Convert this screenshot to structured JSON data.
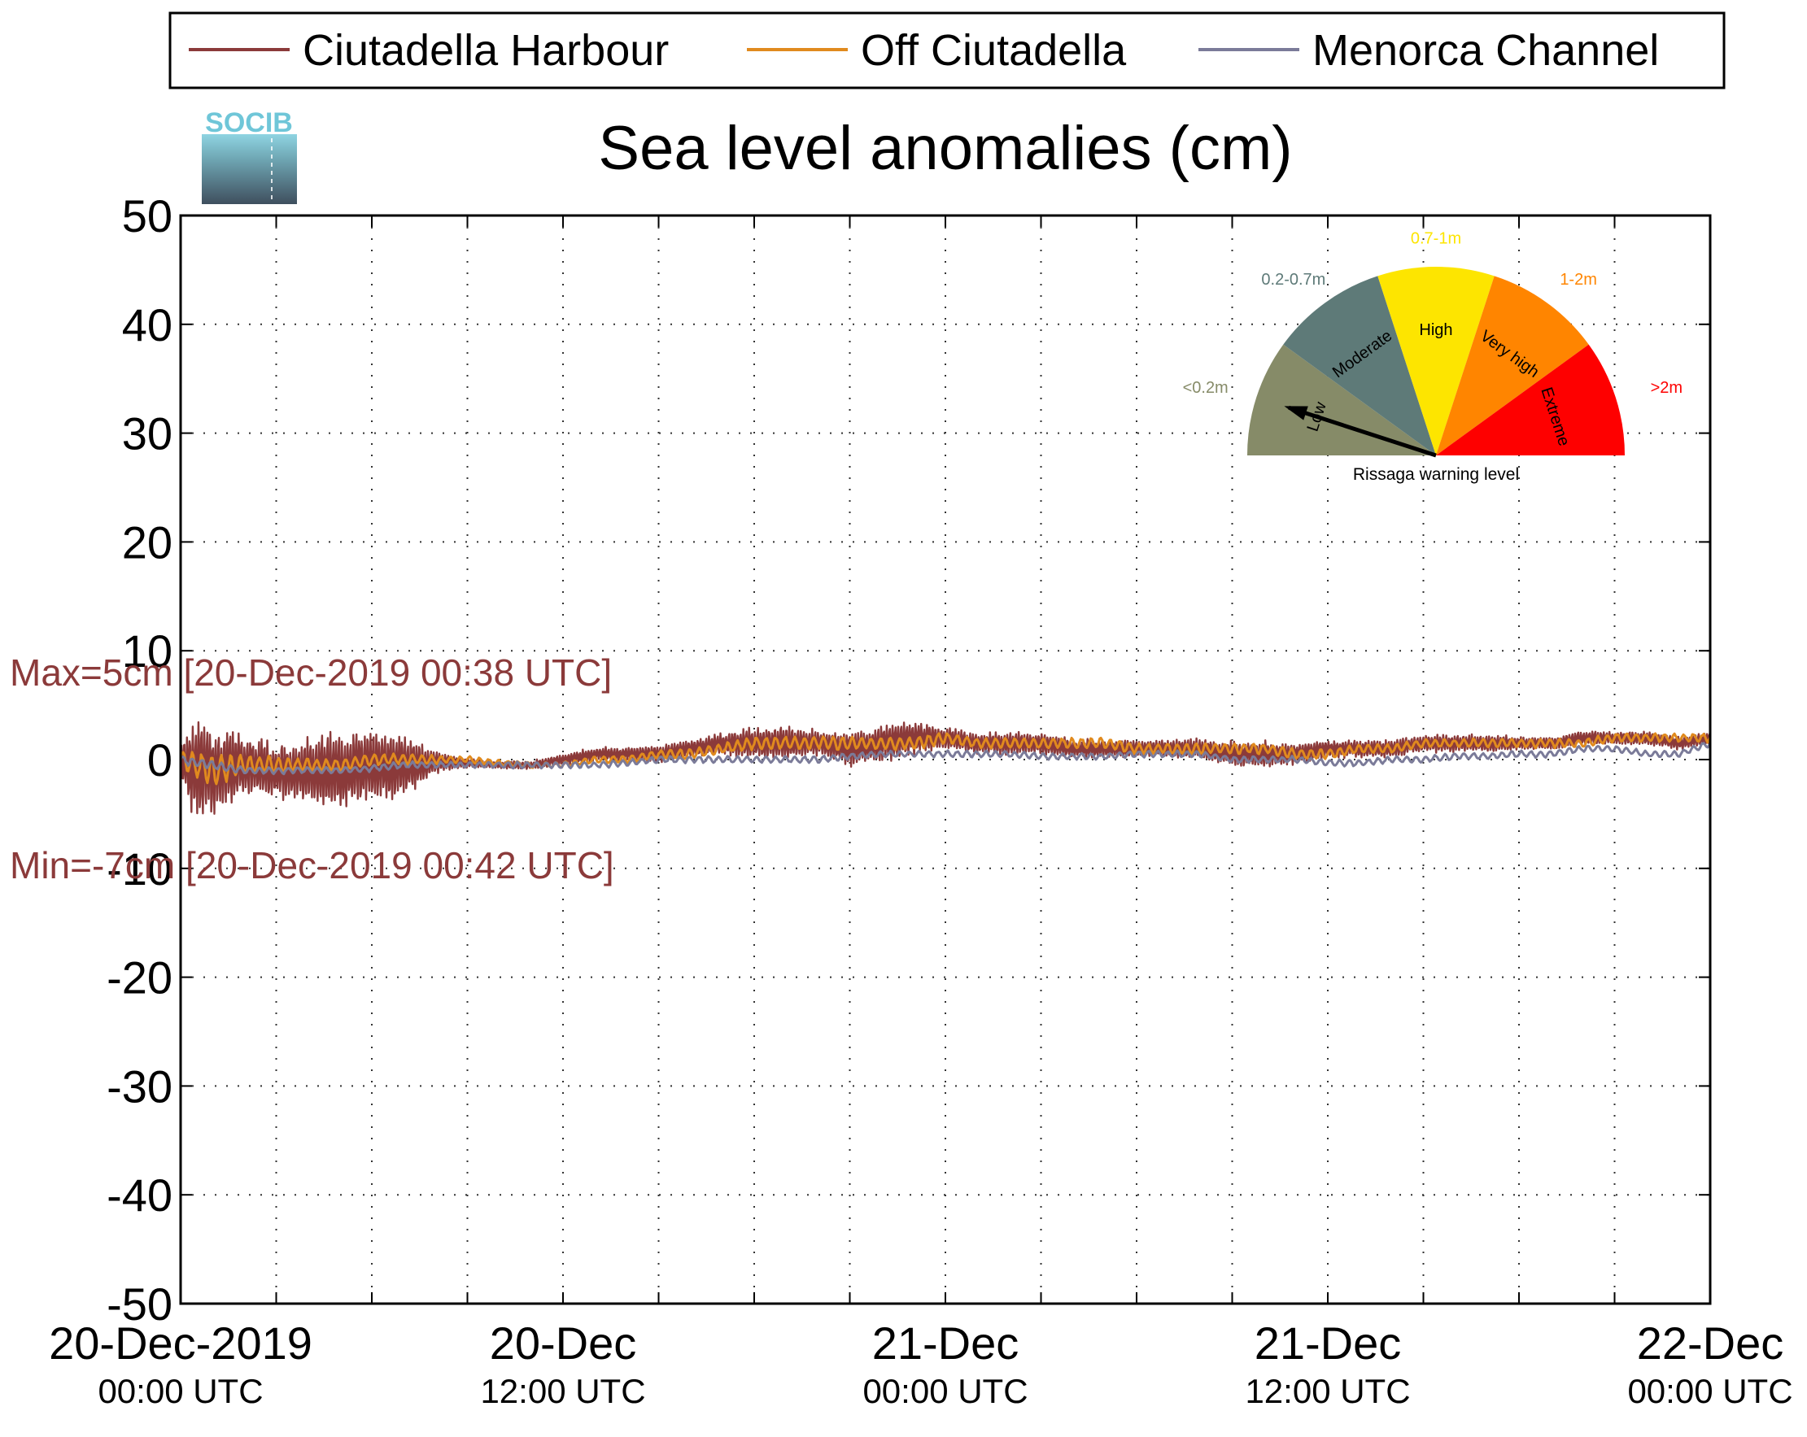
{
  "chart_data": {
    "type": "line",
    "title": "Sea level anomalies (cm)",
    "xlabel": "",
    "ylabel": "",
    "ylim": [
      -50,
      50
    ],
    "yticks": [
      50,
      40,
      30,
      20,
      10,
      0,
      -10,
      -20,
      -30,
      -40,
      -50
    ],
    "xlim_hours": [
      0,
      48
    ],
    "grid": true,
    "legend_position": "top",
    "x_tick_labels": [
      {
        "hour": 0,
        "line1": "20-Dec-2019",
        "line2": "00:00 UTC"
      },
      {
        "hour": 12,
        "line1": "20-Dec",
        "line2": "12:00 UTC"
      },
      {
        "hour": 24,
        "line1": "21-Dec",
        "line2": "00:00 UTC"
      },
      {
        "hour": 36,
        "line1": "21-Dec",
        "line2": "12:00 UTC"
      },
      {
        "hour": 48,
        "line1": "22-Dec",
        "line2": "00:00 UTC"
      }
    ],
    "series": [
      {
        "name": "Ciutadella Harbour",
        "color": "#8b3a3a",
        "x_hours": [
          0,
          0.5,
          1,
          2,
          3,
          4,
          5,
          6,
          7,
          8,
          9,
          10,
          11,
          12,
          13,
          14,
          15,
          16,
          17,
          18,
          19,
          20,
          21,
          22,
          23,
          24,
          25,
          26,
          27,
          28,
          29,
          30,
          31,
          32,
          33,
          34,
          35,
          36,
          37,
          38,
          39,
          40,
          41,
          42,
          43,
          44,
          45,
          46,
          47,
          48
        ],
        "values": [
          0,
          -1,
          -1,
          -0.5,
          -1,
          -1,
          -1,
          -0.5,
          -0.5,
          -0.3,
          -0.3,
          -0.5,
          -0.5,
          0,
          0.5,
          0.5,
          0.5,
          1,
          1.5,
          1.5,
          1.5,
          1.5,
          1,
          1.5,
          2,
          2,
          1.5,
          1.5,
          1.5,
          1,
          1,
          1,
          1,
          1,
          0.5,
          0.5,
          0.5,
          1,
          1,
          1,
          1.5,
          1.5,
          1.5,
          1.5,
          1.5,
          2,
          2,
          2,
          1.5,
          2
        ],
        "oscillation_amplitude_cm": [
          2,
          5,
          4,
          3,
          2.5,
          3,
          3.5,
          3.5,
          3,
          1,
          0.4,
          0.3,
          0.4,
          0.5,
          0.6,
          0.6,
          0.8,
          0.8,
          1,
          1.5,
          1.5,
          1.2,
          1.5,
          1.8,
          1.5,
          1,
          1,
          1,
          1,
          0.8,
          0.8,
          0.8,
          0.8,
          1,
          1.2,
          1.2,
          1,
          0.8,
          0.8,
          0.8,
          0.8,
          0.8,
          0.8,
          0.6,
          0.6,
          0.6,
          0.6,
          0.6,
          0.6,
          0.6
        ]
      },
      {
        "name": "Off Ciutadella",
        "color": "#e08a1e",
        "x_hours": [
          0,
          1,
          2,
          3,
          4,
          5,
          6,
          7,
          8,
          9,
          10,
          11,
          12,
          13,
          14,
          15,
          16,
          17,
          18,
          19,
          20,
          21,
          22,
          23,
          24,
          25,
          26,
          27,
          28,
          29,
          30,
          31,
          32,
          33,
          34,
          35,
          36,
          37,
          38,
          39,
          40,
          41,
          42,
          43,
          44,
          45,
          46,
          47,
          48
        ],
        "values": [
          0,
          -1,
          -0.5,
          -0.5,
          -0.5,
          -0.5,
          0,
          0,
          0,
          0,
          -0.3,
          -0.5,
          -0.5,
          0,
          0,
          0.5,
          0.5,
          1,
          1.5,
          1.5,
          1.5,
          1.5,
          1.5,
          1.5,
          2,
          1.5,
          1.5,
          1.5,
          1.5,
          1.5,
          1,
          1,
          1,
          1,
          1,
          0.5,
          0.5,
          1,
          1,
          1.5,
          1.5,
          1.5,
          1.5,
          1.5,
          1.5,
          2,
          2,
          2,
          2
        ],
        "oscillation_amplitude_cm": [
          1.2,
          1.5,
          1,
          0.8,
          0.6,
          0.6,
          0.6,
          0.5,
          0.4,
          0.3,
          0.3,
          0.3,
          0.3,
          0.3,
          0.4,
          0.4,
          0.5,
          0.5,
          0.6,
          0.6,
          0.6,
          0.6,
          0.6,
          0.6,
          0.6,
          0.5,
          0.5,
          0.5,
          0.5,
          0.5,
          0.5,
          0.5,
          0.5,
          0.5,
          0.5,
          0.5,
          0.5,
          0.4,
          0.4,
          0.4,
          0.4,
          0.4,
          0.4,
          0.4,
          0.4,
          0.4,
          0.4,
          0.4,
          0.4
        ]
      },
      {
        "name": "Menorca Channel",
        "color": "#7b7b99",
        "x_hours": [
          0,
          1,
          2,
          3,
          4,
          5,
          6,
          7,
          8,
          9,
          10,
          11,
          12,
          13,
          14,
          15,
          16,
          17,
          18,
          19,
          20,
          21,
          22,
          23,
          24,
          25,
          26,
          27,
          28,
          29,
          30,
          31,
          32,
          33,
          34,
          35,
          36,
          37,
          38,
          39,
          40,
          41,
          42,
          43,
          44,
          45,
          46,
          47,
          48
        ],
        "values": [
          0,
          -0.5,
          -1,
          -1,
          -1,
          -1,
          -0.8,
          -0.5,
          -0.5,
          -0.5,
          -0.5,
          -0.5,
          -0.5,
          -0.5,
          -0.3,
          0,
          0,
          0,
          0,
          0,
          0,
          0.3,
          0.5,
          0.5,
          0.5,
          0.5,
          0.5,
          0.3,
          0.3,
          0.3,
          0.5,
          0.5,
          0.5,
          0,
          0,
          0,
          -0.3,
          -0.3,
          0,
          0,
          0.3,
          0.3,
          0.5,
          0.5,
          1,
          1,
          0.5,
          0.5,
          1.5
        ],
        "oscillation_amplitude_cm": [
          0.4,
          0.4,
          0.3,
          0.3,
          0.3,
          0.3,
          0.3,
          0.3,
          0.3,
          0.3,
          0.3,
          0.3,
          0.3,
          0.3,
          0.3,
          0.3,
          0.3,
          0.3,
          0.3,
          0.3,
          0.3,
          0.3,
          0.3,
          0.3,
          0.3,
          0.3,
          0.3,
          0.3,
          0.3,
          0.3,
          0.3,
          0.3,
          0.3,
          0.3,
          0.3,
          0.3,
          0.3,
          0.3,
          0.3,
          0.3,
          0.3,
          0.3,
          0.3,
          0.3,
          0.3,
          0.3,
          0.3,
          0.3,
          0.3
        ]
      }
    ],
    "annotations": {
      "max_label": "Max=5cm [20-Dec-2019 00:38 UTC]",
      "min_label": "Min=-7cm [20-Dec-2019 00:42 UTC]",
      "color": "#8b3a3a"
    }
  },
  "logo": {
    "text": "SOCIB"
  },
  "gauge": {
    "caption": "Rissaga warning level",
    "needle_level": "Low",
    "segments": [
      {
        "name": "Low",
        "range": "<0.2m",
        "color": "#868b68",
        "label_color": "#868b68"
      },
      {
        "name": "Moderate",
        "range": "0.2-0.7m",
        "color": "#5e7a78",
        "label_color": "#5e7a78"
      },
      {
        "name": "High",
        "range": "0.7-1m",
        "color": "#fde500",
        "label_color": "#fde500"
      },
      {
        "name": "Very high",
        "range": "1-2m",
        "color": "#ff8500",
        "label_color": "#ff8500"
      },
      {
        "name": "Extreme",
        "range": ">2m",
        "color": "#fe0000",
        "label_color": "#fe0000"
      }
    ]
  }
}
